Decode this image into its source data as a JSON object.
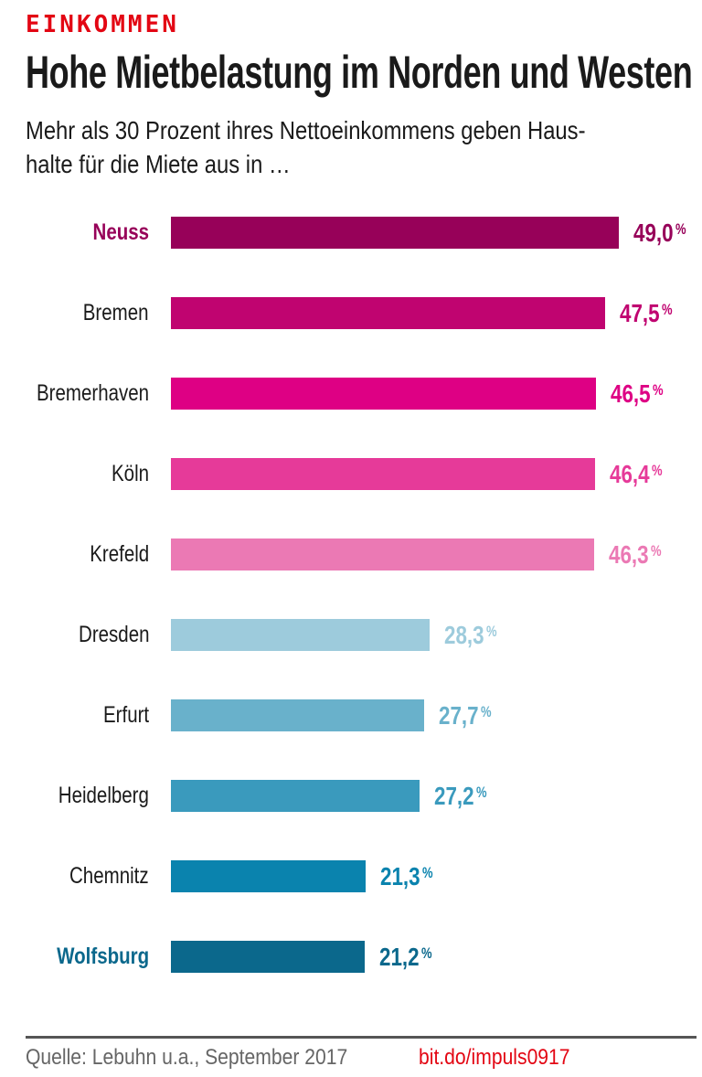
{
  "header": {
    "kicker": "EINKOMMEN",
    "title": "Hohe Mietbelastung im Norden und Westen",
    "subtitle_lines": [
      "Mehr als 30 Prozent ihres Nettoeinkommens geben Haus-",
      "halte für die Miete aus in …"
    ]
  },
  "chart_data": {
    "type": "bar",
    "orientation": "horizontal",
    "title": "Hohe Mietbelastung im Norden und Westen",
    "unit": "%",
    "xlim": [
      0,
      50
    ],
    "grid": false,
    "legend": false,
    "categories": [
      "Neuss",
      "Bremen",
      "Bremerhaven",
      "Köln",
      "Krefeld",
      "Dresden",
      "Erfurt",
      "Heidelberg",
      "Chemnitz",
      "Wolfsburg"
    ],
    "values": [
      49.0,
      47.5,
      46.5,
      46.4,
      46.3,
      28.3,
      27.7,
      27.2,
      21.3,
      21.2
    ],
    "value_labels": [
      "49,0",
      "47,5",
      "46,5",
      "46,4",
      "46,3",
      "28,3",
      "27,7",
      "27,2",
      "21,3",
      "21,2"
    ],
    "bar_colors": [
      "#970159",
      "#c00470",
      "#de0084",
      "#e63a99",
      "#eb79b4",
      "#9dcbdc",
      "#69b1cb",
      "#3a9abd",
      "#0a83ae",
      "#0b688c"
    ],
    "emphasized_categories": [
      "Neuss",
      "Wolfsburg"
    ],
    "group_break_after_index": 4
  },
  "footer": {
    "source": "Quelle: Lebuhn u.a., September 2017",
    "link": "bit.do/impuls0917"
  },
  "colors": {
    "accent_red": "#e30613",
    "text": "#1a1a1a",
    "source_gray": "#666666",
    "divider_gray": "#555555"
  }
}
